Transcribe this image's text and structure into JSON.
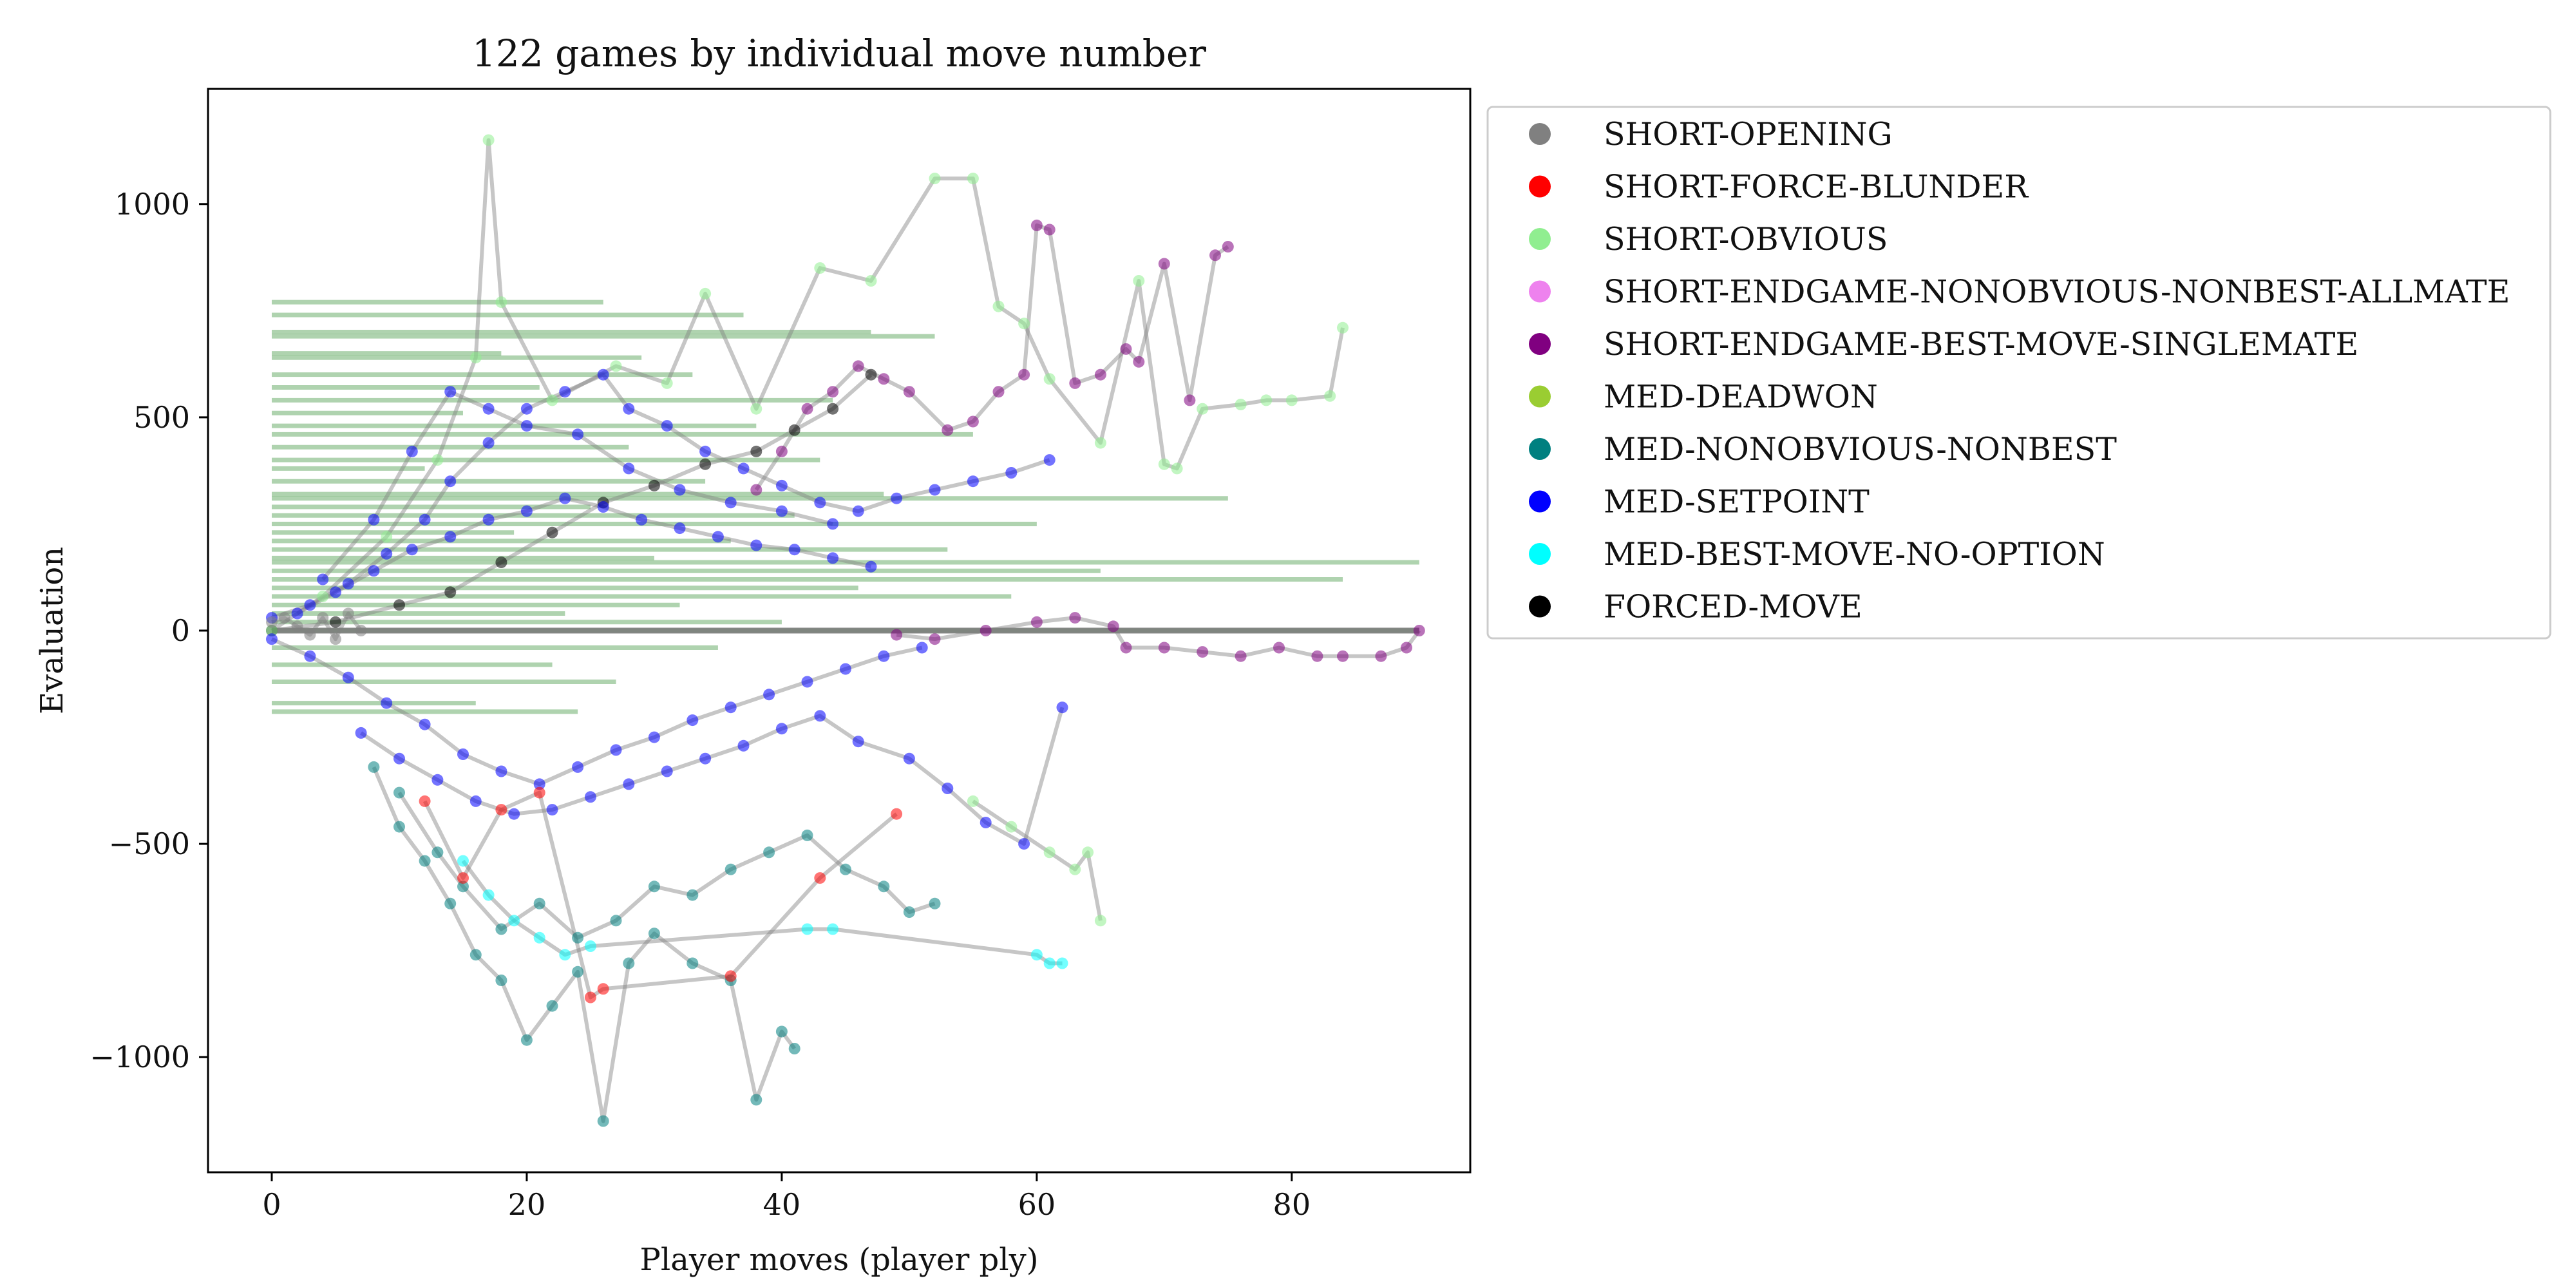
{
  "chart_data": {
    "type": "scatter",
    "title": "122 games by individual move number",
    "xlabel": "Player moves (player ply)",
    "ylabel": "Evaluation",
    "xlim": [
      -5,
      94
    ],
    "ylim": [
      -1270,
      1270
    ],
    "xticks": [
      0,
      20,
      40,
      60,
      80
    ],
    "xtick_labels": [
      "0",
      "20",
      "40",
      "60",
      "80"
    ],
    "yticks": [
      -1000,
      -500,
      0,
      500,
      1000
    ],
    "ytick_labels": [
      "−1000",
      "−500",
      "0",
      "500",
      "1000"
    ],
    "grid": false,
    "legend_placement": "outside-upper-right",
    "n_games": 122,
    "legend": [
      {
        "name": "SHORT-OPENING",
        "color": "#808080"
      },
      {
        "name": "SHORT-FORCE-BLUNDER",
        "color": "#ff0000"
      },
      {
        "name": "SHORT-OBVIOUS",
        "color": "#90ee90"
      },
      {
        "name": "SHORT-ENDGAME-NONOBVIOUS-NONBEST-ALLMATE",
        "color": "#ee82ee"
      },
      {
        "name": "SHORT-ENDGAME-BEST-MOVE-SINGLEMATE",
        "color": "#800080"
      },
      {
        "name": "MED-DEADWON",
        "color": "#9acd32"
      },
      {
        "name": "MED-NONOBVIOUS-NONBEST",
        "color": "#008080"
      },
      {
        "name": "MED-SETPOINT",
        "color": "#0000ff"
      },
      {
        "name": "MED-BEST-MOVE-NO-OPTION",
        "color": "#00ffff"
      },
      {
        "name": "FORCED-MOVE",
        "color": "#000000"
      }
    ],
    "horizontal_segments": [
      {
        "y": 770,
        "x0": 0,
        "x1": 26
      },
      {
        "y": 740,
        "x0": 0,
        "x1": 37
      },
      {
        "y": 700,
        "x0": 0,
        "x1": 47
      },
      {
        "y": 690,
        "x0": 0,
        "x1": 52
      },
      {
        "y": 650,
        "x0": 0,
        "x1": 18
      },
      {
        "y": 640,
        "x0": 0,
        "x1": 29
      },
      {
        "y": 600,
        "x0": 0,
        "x1": 33
      },
      {
        "y": 570,
        "x0": 0,
        "x1": 21
      },
      {
        "y": 540,
        "x0": 0,
        "x1": 44
      },
      {
        "y": 510,
        "x0": 0,
        "x1": 15
      },
      {
        "y": 480,
        "x0": 0,
        "x1": 38
      },
      {
        "y": 460,
        "x0": 0,
        "x1": 55
      },
      {
        "y": 430,
        "x0": 0,
        "x1": 28
      },
      {
        "y": 400,
        "x0": 0,
        "x1": 43
      },
      {
        "y": 380,
        "x0": 0,
        "x1": 12
      },
      {
        "y": 350,
        "x0": 0,
        "x1": 34
      },
      {
        "y": 320,
        "x0": 0,
        "x1": 48
      },
      {
        "y": 310,
        "x0": 0,
        "x1": 75
      },
      {
        "y": 290,
        "x0": 0,
        "x1": 25
      },
      {
        "y": 270,
        "x0": 0,
        "x1": 41
      },
      {
        "y": 250,
        "x0": 0,
        "x1": 60
      },
      {
        "y": 230,
        "x0": 0,
        "x1": 19
      },
      {
        "y": 210,
        "x0": 0,
        "x1": 36
      },
      {
        "y": 190,
        "x0": 0,
        "x1": 53
      },
      {
        "y": 170,
        "x0": 0,
        "x1": 30
      },
      {
        "y": 160,
        "x0": 0,
        "x1": 90
      },
      {
        "y": 140,
        "x0": 0,
        "x1": 65
      },
      {
        "y": 120,
        "x0": 0,
        "x1": 84
      },
      {
        "y": 100,
        "x0": 0,
        "x1": 46
      },
      {
        "y": 80,
        "x0": 0,
        "x1": 58
      },
      {
        "y": 60,
        "x0": 0,
        "x1": 32
      },
      {
        "y": 40,
        "x0": 0,
        "x1": 23
      },
      {
        "y": 20,
        "x0": 0,
        "x1": 40
      },
      {
        "y": 0,
        "x0": 0,
        "x1": 90
      },
      {
        "y": -40,
        "x0": 0,
        "x1": 35
      },
      {
        "y": -80,
        "x0": 0,
        "x1": 22
      },
      {
        "y": -120,
        "x0": 0,
        "x1": 27
      },
      {
        "y": -170,
        "x0": 0,
        "x1": 16
      },
      {
        "y": -190,
        "x0": 0,
        "x1": 24
      }
    ],
    "series": [
      {
        "category": "FORCED-MOVE",
        "points": [
          [
            0,
            0
          ],
          [
            5,
            20
          ],
          [
            10,
            60
          ],
          [
            14,
            90
          ],
          [
            18,
            160
          ],
          [
            22,
            230
          ],
          [
            26,
            300
          ],
          [
            30,
            340
          ],
          [
            34,
            390
          ],
          [
            38,
            420
          ],
          [
            41,
            470
          ],
          [
            44,
            520
          ],
          [
            47,
            600
          ]
        ]
      },
      {
        "category": "SHORT-OBVIOUS",
        "points": [
          [
            0,
            0
          ],
          [
            4,
            80
          ],
          [
            9,
            220
          ],
          [
            13,
            400
          ],
          [
            16,
            640
          ],
          [
            17,
            1150
          ],
          [
            18,
            770
          ],
          [
            22,
            540
          ],
          [
            27,
            620
          ],
          [
            31,
            580
          ],
          [
            34,
            790
          ],
          [
            38,
            520
          ],
          [
            43,
            850
          ],
          [
            47,
            820
          ],
          [
            52,
            1060
          ],
          [
            55,
            1060
          ],
          [
            57,
            760
          ],
          [
            59,
            720
          ],
          [
            61,
            590
          ],
          [
            65,
            440
          ],
          [
            68,
            820
          ],
          [
            70,
            390
          ],
          [
            71,
            380
          ],
          [
            73,
            520
          ],
          [
            76,
            530
          ],
          [
            78,
            540
          ],
          [
            80,
            540
          ],
          [
            83,
            550
          ],
          [
            84,
            710
          ]
        ]
      },
      {
        "category": "SHORT-ENDGAME-BEST-MOVE-SINGLEMATE",
        "points": [
          [
            38,
            330
          ],
          [
            40,
            420
          ],
          [
            42,
            520
          ],
          [
            44,
            560
          ],
          [
            46,
            620
          ],
          [
            48,
            590
          ],
          [
            50,
            560
          ],
          [
            53,
            470
          ],
          [
            55,
            490
          ],
          [
            57,
            560
          ],
          [
            59,
            600
          ],
          [
            60,
            950
          ],
          [
            61,
            940
          ],
          [
            63,
            580
          ],
          [
            65,
            600
          ],
          [
            67,
            660
          ],
          [
            68,
            630
          ],
          [
            70,
            860
          ],
          [
            72,
            540
          ],
          [
            74,
            880
          ],
          [
            75,
            900
          ]
        ]
      },
      {
        "category": "SHORT-ENDGAME-BEST-MOVE-SINGLEMATE",
        "points": [
          [
            49,
            -10
          ],
          [
            52,
            -20
          ],
          [
            56,
            0
          ],
          [
            60,
            20
          ],
          [
            63,
            30
          ],
          [
            66,
            10
          ],
          [
            67,
            -40
          ],
          [
            70,
            -40
          ],
          [
            73,
            -50
          ],
          [
            76,
            -60
          ],
          [
            79,
            -40
          ],
          [
            82,
            -60
          ],
          [
            84,
            -60
          ],
          [
            87,
            -60
          ],
          [
            89,
            -40
          ],
          [
            90,
            0
          ]
        ]
      },
      {
        "category": "MED-SETPOINT",
        "points": [
          [
            0,
            30
          ],
          [
            3,
            60
          ],
          [
            6,
            110
          ],
          [
            9,
            180
          ],
          [
            12,
            260
          ],
          [
            14,
            350
          ],
          [
            17,
            440
          ],
          [
            20,
            520
          ],
          [
            23,
            560
          ],
          [
            26,
            600
          ],
          [
            28,
            520
          ],
          [
            31,
            480
          ],
          [
            34,
            420
          ],
          [
            37,
            380
          ],
          [
            40,
            340
          ],
          [
            43,
            300
          ],
          [
            46,
            280
          ],
          [
            49,
            310
          ],
          [
            52,
            330
          ],
          [
            55,
            350
          ],
          [
            58,
            370
          ],
          [
            61,
            400
          ]
        ]
      },
      {
        "category": "MED-SETPOINT",
        "points": [
          [
            0,
            -20
          ],
          [
            3,
            -60
          ],
          [
            6,
            -110
          ],
          [
            9,
            -170
          ],
          [
            12,
            -220
          ],
          [
            15,
            -290
          ],
          [
            18,
            -330
          ],
          [
            21,
            -360
          ],
          [
            24,
            -320
          ],
          [
            27,
            -280
          ],
          [
            30,
            -250
          ],
          [
            33,
            -210
          ],
          [
            36,
            -180
          ],
          [
            39,
            -150
          ],
          [
            42,
            -120
          ],
          [
            45,
            -90
          ],
          [
            48,
            -60
          ],
          [
            51,
            -40
          ]
        ]
      },
      {
        "category": "MED-SETPOINT",
        "points": [
          [
            2,
            40
          ],
          [
            5,
            90
          ],
          [
            8,
            140
          ],
          [
            11,
            190
          ],
          [
            14,
            220
          ],
          [
            17,
            260
          ],
          [
            20,
            280
          ],
          [
            23,
            310
          ],
          [
            26,
            290
          ],
          [
            29,
            260
          ],
          [
            32,
            240
          ],
          [
            35,
            220
          ],
          [
            38,
            200
          ],
          [
            41,
            190
          ],
          [
            44,
            170
          ],
          [
            47,
            150
          ]
        ]
      },
      {
        "category": "MED-SETPOINT",
        "points": [
          [
            7,
            -240
          ],
          [
            10,
            -300
          ],
          [
            13,
            -350
          ],
          [
            16,
            -400
          ],
          [
            19,
            -430
          ],
          [
            22,
            -420
          ],
          [
            25,
            -390
          ],
          [
            28,
            -360
          ],
          [
            31,
            -330
          ],
          [
            34,
            -300
          ],
          [
            37,
            -270
          ],
          [
            40,
            -230
          ],
          [
            43,
            -200
          ],
          [
            46,
            -260
          ],
          [
            50,
            -300
          ],
          [
            53,
            -370
          ],
          [
            56,
            -450
          ],
          [
            59,
            -500
          ],
          [
            62,
            -180
          ]
        ]
      },
      {
        "category": "MED-SETPOINT",
        "points": [
          [
            4,
            120
          ],
          [
            8,
            260
          ],
          [
            11,
            420
          ],
          [
            14,
            560
          ],
          [
            17,
            520
          ],
          [
            20,
            480
          ],
          [
            24,
            460
          ],
          [
            28,
            380
          ],
          [
            32,
            330
          ],
          [
            36,
            300
          ],
          [
            40,
            280
          ],
          [
            44,
            250
          ]
        ]
      },
      {
        "category": "MED-NONOBVIOUS-NONBEST",
        "points": [
          [
            8,
            -320
          ],
          [
            10,
            -460
          ],
          [
            12,
            -540
          ],
          [
            14,
            -640
          ],
          [
            16,
            -760
          ],
          [
            18,
            -820
          ],
          [
            20,
            -960
          ],
          [
            22,
            -880
          ],
          [
            24,
            -800
          ],
          [
            26,
            -1150
          ],
          [
            28,
            -780
          ],
          [
            30,
            -710
          ],
          [
            33,
            -780
          ],
          [
            36,
            -820
          ],
          [
            38,
            -1100
          ],
          [
            40,
            -940
          ],
          [
            41,
            -980
          ]
        ]
      },
      {
        "category": "MED-NONOBVIOUS-NONBEST",
        "points": [
          [
            10,
            -380
          ],
          [
            13,
            -520
          ],
          [
            15,
            -600
          ],
          [
            18,
            -700
          ],
          [
            21,
            -640
          ],
          [
            24,
            -720
          ],
          [
            27,
            -680
          ],
          [
            30,
            -600
          ],
          [
            33,
            -620
          ],
          [
            36,
            -560
          ],
          [
            39,
            -520
          ],
          [
            42,
            -480
          ],
          [
            45,
            -560
          ],
          [
            48,
            -600
          ],
          [
            50,
            -660
          ],
          [
            52,
            -640
          ]
        ]
      },
      {
        "category": "MED-BEST-MOVE-NO-OPTION",
        "points": [
          [
            15,
            -540
          ],
          [
            17,
            -620
          ],
          [
            19,
            -680
          ],
          [
            21,
            -720
          ],
          [
            23,
            -760
          ],
          [
            25,
            -740
          ],
          [
            42,
            -700
          ],
          [
            44,
            -700
          ],
          [
            60,
            -760
          ],
          [
            61,
            -780
          ],
          [
            62,
            -780
          ]
        ]
      },
      {
        "category": "SHORT-FORCE-BLUNDER",
        "points": [
          [
            12,
            -400
          ],
          [
            15,
            -580
          ],
          [
            18,
            -420
          ],
          [
            21,
            -380
          ],
          [
            25,
            -860
          ],
          [
            26,
            -840
          ],
          [
            36,
            -810
          ],
          [
            43,
            -580
          ],
          [
            49,
            -430
          ]
        ]
      },
      {
        "category": "SHORT-OBVIOUS",
        "points": [
          [
            55,
            -400
          ],
          [
            58,
            -460
          ],
          [
            61,
            -520
          ],
          [
            63,
            -560
          ],
          [
            64,
            -520
          ],
          [
            65,
            -680
          ]
        ]
      },
      {
        "category": "SHORT-OPENING",
        "points": [
          [
            0,
            20
          ],
          [
            1,
            30
          ],
          [
            2,
            10
          ],
          [
            3,
            -10
          ],
          [
            4,
            30
          ],
          [
            5,
            -20
          ],
          [
            6,
            40
          ],
          [
            7,
            0
          ]
        ]
      }
    ]
  }
}
